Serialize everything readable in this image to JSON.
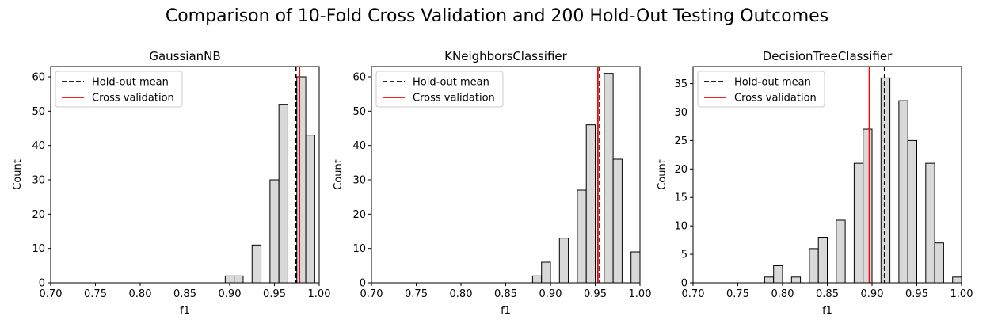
{
  "figure": {
    "title": "Comparison of 10-Fold Cross Validation and 200 Hold-Out Testing Outcomes"
  },
  "chart_data": [
    {
      "type": "bar",
      "title": "GaussianNB",
      "xlabel": "f1",
      "ylabel": "Count",
      "xlim": [
        0.7,
        1.0
      ],
      "ylim": [
        0,
        63
      ],
      "xticks": [
        "0.70",
        "0.75",
        "0.80",
        "0.85",
        "0.90",
        "0.95",
        "1.00"
      ],
      "yticks": [
        "0",
        "10",
        "20",
        "30",
        "40",
        "50",
        "60"
      ],
      "bin_width": 0.01,
      "bins": [
        {
          "x": 0.9,
          "count": 2
        },
        {
          "x": 0.91,
          "count": 2
        },
        {
          "x": 0.93,
          "count": 11
        },
        {
          "x": 0.95,
          "count": 30
        },
        {
          "x": 0.96,
          "count": 52
        },
        {
          "x": 0.98,
          "count": 60
        },
        {
          "x": 0.99,
          "count": 43
        }
      ],
      "holdout_mean": 0.974,
      "cross_validation": 0.978,
      "legend": {
        "position": "top-left",
        "holdout_label": "Hold-out mean",
        "cv_label": "Cross validation"
      }
    },
    {
      "type": "bar",
      "title": "KNeighborsClassifier",
      "xlabel": "f1",
      "ylabel": "Count",
      "xlim": [
        0.7,
        1.0
      ],
      "ylim": [
        0,
        63
      ],
      "xticks": [
        "0.70",
        "0.75",
        "0.80",
        "0.85",
        "0.90",
        "0.95",
        "1.00"
      ],
      "yticks": [
        "0",
        "10",
        "20",
        "30",
        "40",
        "50",
        "60"
      ],
      "bin_width": 0.01,
      "bins": [
        {
          "x": 0.885,
          "count": 2
        },
        {
          "x": 0.895,
          "count": 6
        },
        {
          "x": 0.915,
          "count": 13
        },
        {
          "x": 0.935,
          "count": 27
        },
        {
          "x": 0.945,
          "count": 46
        },
        {
          "x": 0.965,
          "count": 61
        },
        {
          "x": 0.975,
          "count": 36
        },
        {
          "x": 0.995,
          "count": 9
        }
      ],
      "holdout_mean": 0.955,
      "cross_validation": 0.953,
      "legend": {
        "position": "top-left",
        "holdout_label": "Hold-out mean",
        "cv_label": "Cross validation"
      }
    },
    {
      "type": "bar",
      "title": "DecisionTreeClassifier",
      "xlabel": "f1",
      "ylabel": "Count",
      "xlim": [
        0.7,
        1.0
      ],
      "ylim": [
        0,
        38
      ],
      "xticks": [
        "0.70",
        "0.75",
        "0.80",
        "0.85",
        "0.90",
        "0.95",
        "1.00"
      ],
      "yticks": [
        "0",
        "5",
        "10",
        "15",
        "20",
        "25",
        "30",
        "35"
      ],
      "bin_width": 0.01,
      "bins": [
        {
          "x": 0.785,
          "count": 1
        },
        {
          "x": 0.795,
          "count": 3
        },
        {
          "x": 0.815,
          "count": 1
        },
        {
          "x": 0.835,
          "count": 6
        },
        {
          "x": 0.845,
          "count": 8
        },
        {
          "x": 0.865,
          "count": 11
        },
        {
          "x": 0.885,
          "count": 21
        },
        {
          "x": 0.895,
          "count": 27
        },
        {
          "x": 0.915,
          "count": 36
        },
        {
          "x": 0.935,
          "count": 32
        },
        {
          "x": 0.945,
          "count": 25
        },
        {
          "x": 0.965,
          "count": 21
        },
        {
          "x": 0.975,
          "count": 7
        },
        {
          "x": 0.995,
          "count": 1
        }
      ],
      "holdout_mean": 0.914,
      "cross_validation": 0.897,
      "legend": {
        "position": "top-left",
        "holdout_label": "Hold-out mean",
        "cv_label": "Cross validation"
      }
    }
  ],
  "colors": {
    "bar_fill": "#d9d9d9",
    "bar_edge": "#000000",
    "holdout_line": "#000000",
    "cv_line": "#ff0000",
    "legend_border": "#cccccc"
  }
}
